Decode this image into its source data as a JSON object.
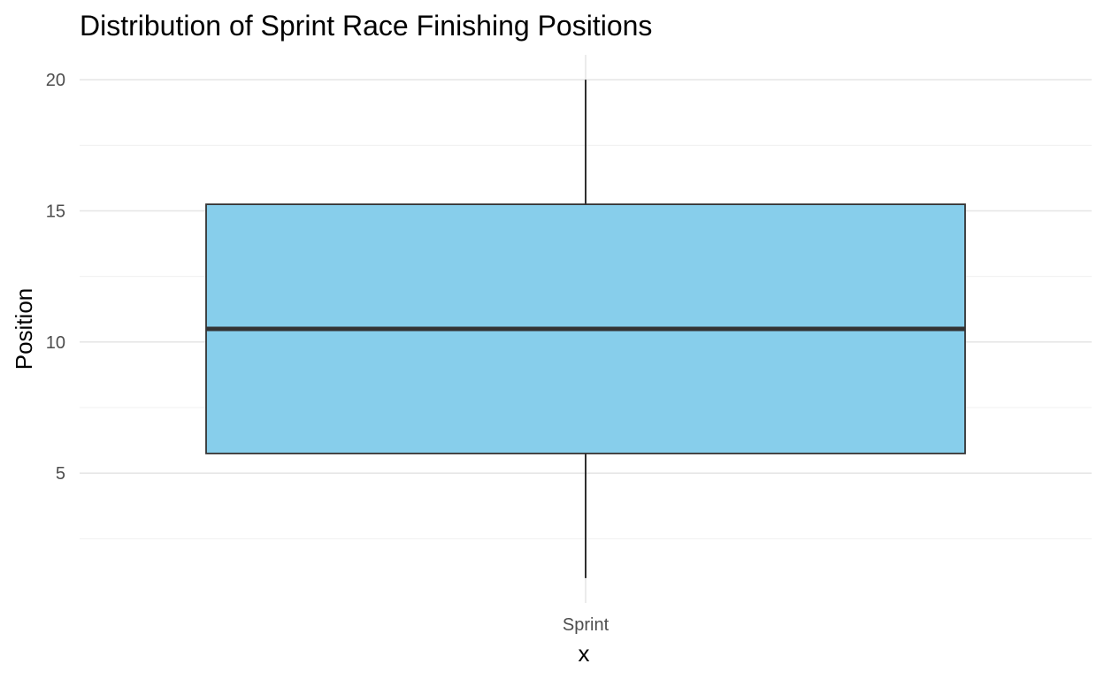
{
  "chart_data": {
    "type": "boxplot",
    "title": "Distribution of Sprint Race Finishing Positions",
    "xlabel": "x",
    "ylabel": "Position",
    "categories": [
      "Sprint"
    ],
    "boxes": [
      {
        "category": "Sprint",
        "min": 1,
        "q1": 5.75,
        "median": 10.5,
        "q3": 15.25,
        "max": 20
      }
    ],
    "yticks": [
      5,
      10,
      15,
      20
    ],
    "ylim": [
      0.05,
      20.95
    ],
    "grid": true,
    "legend": "none",
    "colors": {
      "box_fill": "#87CEEB",
      "box_stroke": "#333333",
      "whisker": "#1a1a1a"
    }
  }
}
